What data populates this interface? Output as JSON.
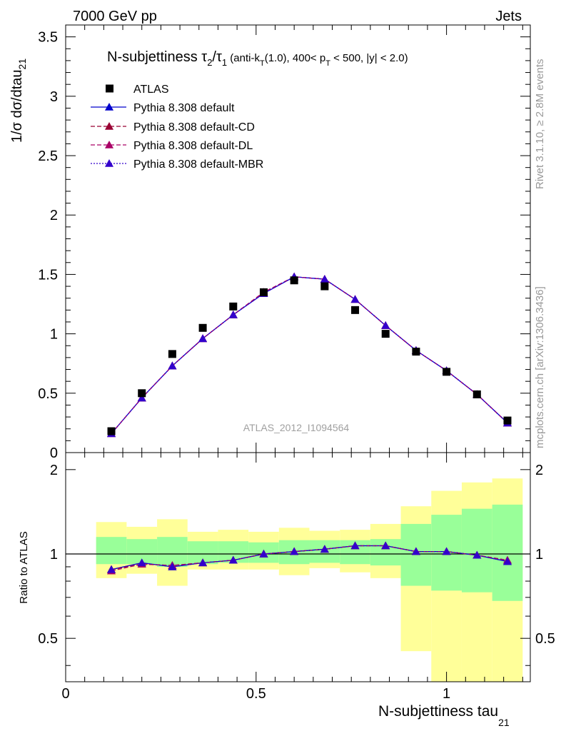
{
  "header": {
    "left": "7000 GeV pp",
    "right": "Jets"
  },
  "side_labels": {
    "rivet": "Rivet 3.1.10, ≥ 2.8M events",
    "mcplots": "mcplots.cern.ch [arXiv:1306.3436]"
  },
  "plot_title": "N-subjettiness τ2/τ1 (anti-kT(1.0), 400< pT < 500, |y| < 2.0)",
  "analysis_id": "ATLAS_2012_I1094564",
  "colors": {
    "data": "#000000",
    "default": "#0000cc",
    "cd": "#990033",
    "dl": "#aa0066",
    "mbr": "#3300cc",
    "band_inner": "#99ff99",
    "band_outer": "#ffff99"
  },
  "chart_data": [
    {
      "type": "scatter",
      "panel": "main",
      "title": "N-subjettiness τ2/τ1 (anti-kT(1.0), 400< pT < 500, |y| < 2.0)",
      "ylabel": "1/σ dσ/dtau21",
      "ylim": [
        0,
        3.6
      ],
      "yticks": [
        "0",
        "0.5",
        "1",
        "1.5",
        "2",
        "2.5",
        "3",
        "3.5"
      ],
      "legend_position": "top-left",
      "x": [
        0.12,
        0.2,
        0.28,
        0.36,
        0.44,
        0.52,
        0.6,
        0.68,
        0.76,
        0.84,
        0.92,
        1.0,
        1.08,
        1.16
      ],
      "series": [
        {
          "name": "ATLAS",
          "marker": "square",
          "values": [
            0.18,
            0.5,
            0.83,
            1.05,
            1.23,
            1.35,
            1.45,
            1.4,
            1.2,
            1.0,
            0.85,
            0.68,
            0.49,
            0.27
          ]
        },
        {
          "name": "Pythia 8.308 default",
          "marker": "triangle",
          "line": "solid",
          "values": [
            0.16,
            0.46,
            0.73,
            0.96,
            1.16,
            1.34,
            1.48,
            1.46,
            1.29,
            1.07,
            0.86,
            0.69,
            0.49,
            0.25
          ]
        },
        {
          "name": "Pythia 8.308 default-CD",
          "marker": "triangle",
          "line": "dashed",
          "values": [
            0.16,
            0.46,
            0.73,
            0.96,
            1.16,
            1.35,
            1.48,
            1.46,
            1.29,
            1.07,
            0.86,
            0.69,
            0.49,
            0.25
          ]
        },
        {
          "name": "Pythia 8.308 default-DL",
          "marker": "triangle",
          "line": "dashed",
          "values": [
            0.16,
            0.46,
            0.73,
            0.96,
            1.16,
            1.35,
            1.48,
            1.46,
            1.29,
            1.07,
            0.86,
            0.69,
            0.49,
            0.25
          ]
        },
        {
          "name": "Pythia 8.308 default-MBR",
          "marker": "triangle",
          "line": "dotted",
          "values": [
            0.16,
            0.46,
            0.73,
            0.96,
            1.16,
            1.34,
            1.48,
            1.46,
            1.29,
            1.07,
            0.86,
            0.69,
            0.49,
            0.25
          ]
        }
      ]
    },
    {
      "type": "line",
      "panel": "ratio",
      "xlabel": "N-subjettiness tau21",
      "ylabel": "Ratio to ATLAS",
      "xlim": [
        0,
        1.22
      ],
      "ylim": [
        0.35,
        2.3
      ],
      "xticks": [
        "0",
        "0.5",
        "1"
      ],
      "yticks": [
        "0.5",
        "1",
        "2"
      ],
      "bin_edges": [
        0.08,
        0.16,
        0.24,
        0.32,
        0.4,
        0.48,
        0.56,
        0.64,
        0.72,
        0.8,
        0.88,
        0.96,
        1.04,
        1.12,
        1.2
      ],
      "band_inner": {
        "lo": [
          0.92,
          0.92,
          0.9,
          0.92,
          0.93,
          0.93,
          0.92,
          0.93,
          0.92,
          0.91,
          0.77,
          0.74,
          0.73,
          0.68
        ],
        "hi": [
          1.15,
          1.13,
          1.15,
          1.11,
          1.11,
          1.1,
          1.12,
          1.12,
          1.12,
          1.13,
          1.28,
          1.38,
          1.45,
          1.5
        ]
      },
      "band_outer": {
        "lo": [
          0.82,
          0.85,
          0.77,
          0.88,
          0.88,
          0.88,
          0.84,
          0.89,
          0.86,
          0.82,
          0.45,
          0.33,
          0.3,
          0.28
        ],
        "hi": [
          1.3,
          1.25,
          1.33,
          1.2,
          1.22,
          1.2,
          1.24,
          1.21,
          1.22,
          1.28,
          1.48,
          1.68,
          1.8,
          1.86
        ]
      },
      "x": [
        0.12,
        0.2,
        0.28,
        0.36,
        0.44,
        0.52,
        0.6,
        0.68,
        0.76,
        0.84,
        0.92,
        1.0,
        1.08,
        1.16
      ],
      "series": [
        {
          "name": "Pythia 8.308 default",
          "values": [
            0.88,
            0.93,
            0.9,
            0.93,
            0.95,
            1.0,
            1.02,
            1.04,
            1.07,
            1.07,
            1.02,
            1.02,
            0.99,
            0.94
          ]
        },
        {
          "name": "Pythia 8.308 default-CD",
          "values": [
            0.88,
            0.92,
            0.91,
            0.93,
            0.95,
            1.0,
            1.02,
            1.04,
            1.07,
            1.07,
            1.02,
            1.02,
            0.99,
            0.95
          ]
        },
        {
          "name": "Pythia 8.308 default-DL",
          "values": [
            0.87,
            0.92,
            0.91,
            0.93,
            0.95,
            1.0,
            1.02,
            1.04,
            1.07,
            1.07,
            1.02,
            1.02,
            0.99,
            0.95
          ]
        },
        {
          "name": "Pythia 8.308 default-MBR",
          "values": [
            0.88,
            0.93,
            0.9,
            0.93,
            0.95,
            1.0,
            1.02,
            1.04,
            1.07,
            1.07,
            1.02,
            1.02,
            0.99,
            0.94
          ]
        }
      ]
    }
  ]
}
